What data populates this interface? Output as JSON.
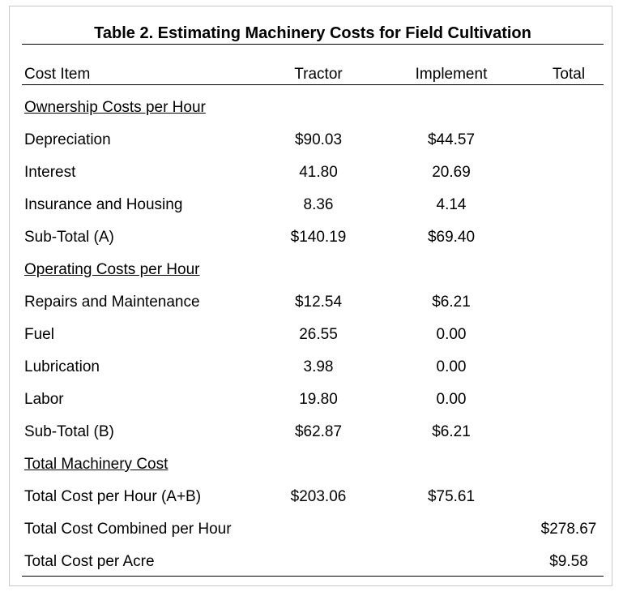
{
  "title": "Table 2.  Estimating Machinery Costs for Field Cultivation",
  "headers": {
    "item": "Cost Item",
    "tractor": "Tractor",
    "implement": "Implement",
    "total": "Total"
  },
  "rows": [
    {
      "item": "Ownership Costs per Hour",
      "section": true,
      "tractor": "",
      "implement": "",
      "total": ""
    },
    {
      "item": "Depreciation",
      "tractor": "$90.03",
      "implement": "$44.57",
      "total": ""
    },
    {
      "item": "Interest",
      "tractor": "41.80",
      "implement": "20.69",
      "total": ""
    },
    {
      "item": "Insurance and Housing",
      "tractor": "8.36",
      "implement": "4.14",
      "total": ""
    },
    {
      "item": "Sub-Total (A)",
      "tractor": "$140.19",
      "implement": "$69.40",
      "total": ""
    },
    {
      "item": "Operating Costs per Hour",
      "section": true,
      "tractor": "",
      "implement": "",
      "total": ""
    },
    {
      "item": "Repairs and Maintenance",
      "tractor": "$12.54",
      "implement": "$6.21",
      "total": ""
    },
    {
      "item": "Fuel",
      "tractor": "26.55",
      "implement": "0.00",
      "total": ""
    },
    {
      "item": "Lubrication",
      "tractor": "3.98",
      "implement": "0.00",
      "total": ""
    },
    {
      "item": "Labor",
      "tractor": "19.80",
      "implement": "0.00",
      "total": ""
    },
    {
      "item": "Sub-Total (B)",
      "tractor": "$62.87",
      "implement": "$6.21",
      "total": ""
    },
    {
      "item": "Total Machinery Cost",
      "section": true,
      "tractor": "",
      "implement": "",
      "total": ""
    },
    {
      "item": "Total Cost per Hour (A+B)",
      "tractor": "$203.06",
      "implement": "$75.61",
      "total": ""
    },
    {
      "item": "Total Cost Combined per Hour",
      "tractor": "",
      "implement": "",
      "total": "$278.67"
    },
    {
      "item": "Total Cost per Acre",
      "tractor": "",
      "implement": "",
      "total": "$9.58"
    }
  ]
}
